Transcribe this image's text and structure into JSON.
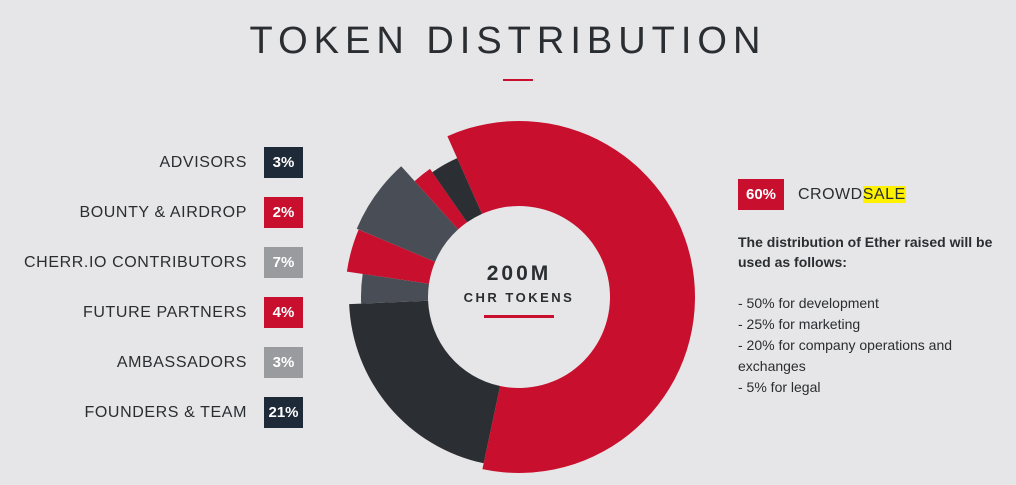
{
  "header": {
    "title": "TOKEN DISTRIBUTION"
  },
  "chart_data": {
    "type": "pie",
    "title": "TOKEN DISTRIBUTION",
    "center_value": "200M",
    "center_label": "CHR TOKENS",
    "legend_placement": "left",
    "categories": [
      "CROWDSALE",
      "FOUNDERS & TEAM",
      "AMBASSADORS",
      "FUTURE PARTNERS",
      "CHERR.IO CONTRIBUTORS",
      "BOUNTY & AIRDROP",
      "ADVISORS"
    ],
    "values": [
      60,
      21,
      3,
      4,
      7,
      2,
      3
    ],
    "colors": [
      "#c8102e",
      "#2b2e33",
      "#494d55",
      "#c8102e",
      "#494d55",
      "#c8102e",
      "#2b2e33"
    ]
  },
  "legend": [
    {
      "label": "ADVISORS",
      "value": "3%",
      "color": "#1f2a38"
    },
    {
      "label": "BOUNTY & AIRDROP",
      "value": "2%",
      "color": "#c8102e"
    },
    {
      "label": "CHERR.IO CONTRIBUTORS",
      "value": "7%",
      "color": "#9a9b9f"
    },
    {
      "label": "FUTURE PARTNERS",
      "value": "4%",
      "color": "#c8102e"
    },
    {
      "label": "AMBASSADORS",
      "value": "3%",
      "color": "#9a9b9f"
    },
    {
      "label": "FOUNDERS & TEAM",
      "value": "21%",
      "color": "#1f2a38"
    }
  ],
  "crowdsale": {
    "value": "60%",
    "label_prefix": "CROWD",
    "label_highlight": "SALE"
  },
  "description": {
    "heading": "The distribution of Ether raised will be used as follows:",
    "items": [
      "- 50% for development",
      "- 25% for marketing",
      "- 20% for company operations and exchanges",
      "- 5% for legal"
    ]
  }
}
